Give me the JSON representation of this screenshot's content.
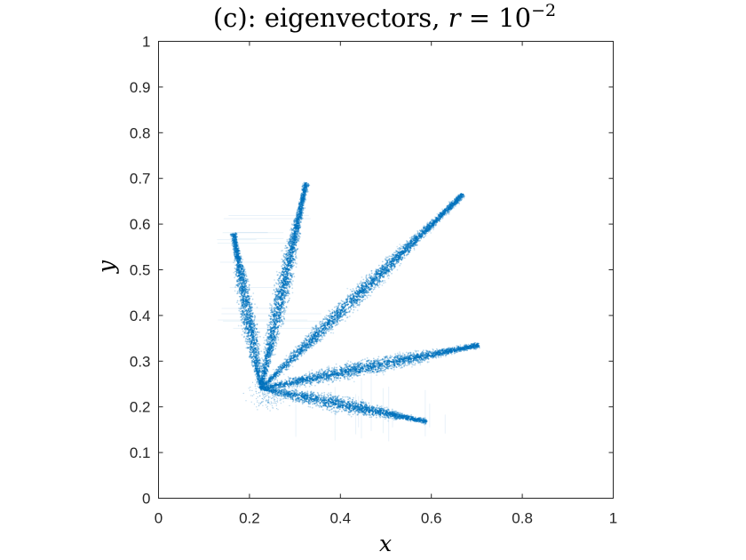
{
  "chart_data": {
    "type": "scatter",
    "title": {
      "prefix": "(c): eigenvectors, ",
      "var": "r",
      "eq": " = 10",
      "exp": "−2"
    },
    "xlabel": "x",
    "ylabel": "y",
    "xlim": [
      0,
      1
    ],
    "ylim": [
      0,
      1
    ],
    "xticks": [
      "0",
      "0.2",
      "0.4",
      "0.6",
      "0.8",
      "1"
    ],
    "yticks": [
      "0",
      "0.1",
      "0.2",
      "0.3",
      "0.4",
      "0.5",
      "0.6",
      "0.7",
      "0.8",
      "0.9",
      "1"
    ],
    "grid": false,
    "color": "#0072BD",
    "hub": [
      0.225,
      0.24
    ],
    "rays": [
      {
        "end": [
          0.165,
          0.58
        ]
      },
      {
        "end": [
          0.325,
          0.69
        ]
      },
      {
        "end": [
          0.67,
          0.665
        ]
      },
      {
        "end": [
          0.705,
          0.335
        ]
      },
      {
        "end": [
          0.59,
          0.168
        ]
      }
    ]
  }
}
